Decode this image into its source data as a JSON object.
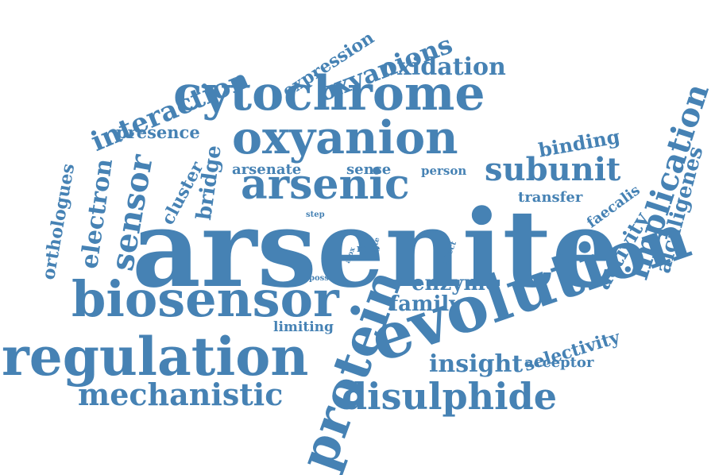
{
  "color": "#4682B4",
  "words": [
    {
      "id": "arsenite",
      "text": "arsenite"
    },
    {
      "id": "evolution",
      "text": "evolution"
    },
    {
      "id": "regulation",
      "text": "regulation"
    },
    {
      "id": "protein",
      "text": "protein"
    },
    {
      "id": "biosensor",
      "text": "biosensor"
    },
    {
      "id": "cytochrome",
      "text": "cytochrome"
    },
    {
      "id": "oxyanion",
      "text": "oxyanion"
    },
    {
      "id": "arsenic",
      "text": "arsenic"
    },
    {
      "id": "disulphide",
      "text": "disulphide"
    },
    {
      "id": "mechanistic",
      "text": "mechanistic"
    },
    {
      "id": "implication",
      "text": "implication"
    },
    {
      "id": "subunit",
      "text": "subunit"
    },
    {
      "id": "interaction",
      "text": "interaction"
    },
    {
      "id": "oxyanions",
      "text": "oxyanions"
    },
    {
      "id": "sensor",
      "text": "sensor"
    },
    {
      "id": "electron",
      "text": "electron"
    },
    {
      "id": "insight",
      "text": "insight"
    },
    {
      "id": "enzyme",
      "text": "enzyme"
    },
    {
      "id": "oxidation",
      "text": "oxidation"
    },
    {
      "id": "alcaligenes",
      "text": "alcaligenes"
    },
    {
      "id": "activity",
      "text": "activity"
    },
    {
      "id": "family",
      "text": "family"
    },
    {
      "id": "selectivity",
      "text": "selectivity"
    },
    {
      "id": "orthologues",
      "text": "orthologues"
    },
    {
      "id": "binding",
      "text": "binding"
    },
    {
      "id": "bridge",
      "text": "bridge"
    },
    {
      "id": "expression",
      "text": "expression"
    },
    {
      "id": "presence",
      "text": "presence"
    },
    {
      "id": "cluster",
      "text": "cluster"
    },
    {
      "id": "acceptor",
      "text": "acceptor"
    },
    {
      "id": "transfer",
      "text": "transfer"
    },
    {
      "id": "faecalis",
      "text": "faecalis"
    },
    {
      "id": "arsenate",
      "text": "arsenate"
    },
    {
      "id": "sense",
      "text": "sense"
    },
    {
      "id": "limiting",
      "text": "limiting"
    },
    {
      "id": "person",
      "text": "person"
    },
    {
      "id": "rate",
      "text": "rate"
    },
    {
      "id": "affect",
      "text": "affect"
    },
    {
      "id": "step",
      "text": "step"
    },
    {
      "id": "site",
      "text": "site"
    },
    {
      "id": "aiox",
      "text": "aiox"
    },
    {
      "id": "poss",
      "text": "poss"
    }
  ]
}
